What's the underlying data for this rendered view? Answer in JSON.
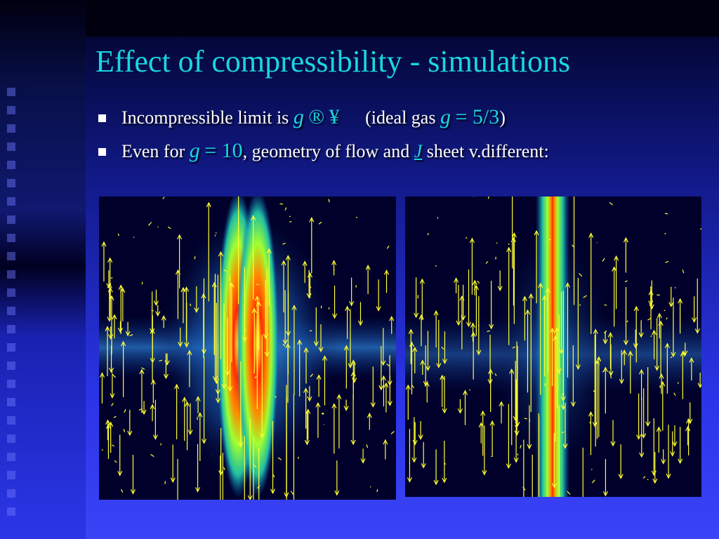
{
  "slide": {
    "title": "Effect of compressibility - simulations",
    "bullets": [
      {
        "prefix": "Incompressible limit is ",
        "sym_gamma": "g",
        "arrow": "®",
        "infinity": "¥",
        "ideal_gas_text": "(ideal gas ",
        "sym_gamma2": "g",
        "eq_value": "= 5/3",
        "close": ")"
      },
      {
        "prefix": "Even for ",
        "sym_gamma": "g",
        "eq_value": "= 10",
        "middle_text": ", geometry of flow and ",
        "sym_j": "J",
        "suffix": " sheet v.different:"
      }
    ]
  },
  "colors": {
    "title": "#19d6e0",
    "bullet_text": "#ffffff",
    "math_symbols": "#19d6e0",
    "vector_arrows": "#ffff33",
    "panel_background": "#00002a"
  },
  "figures": [
    {
      "name": "left-simulation",
      "description_visible": false
    },
    {
      "name": "right-simulation",
      "description_visible": false
    }
  ]
}
